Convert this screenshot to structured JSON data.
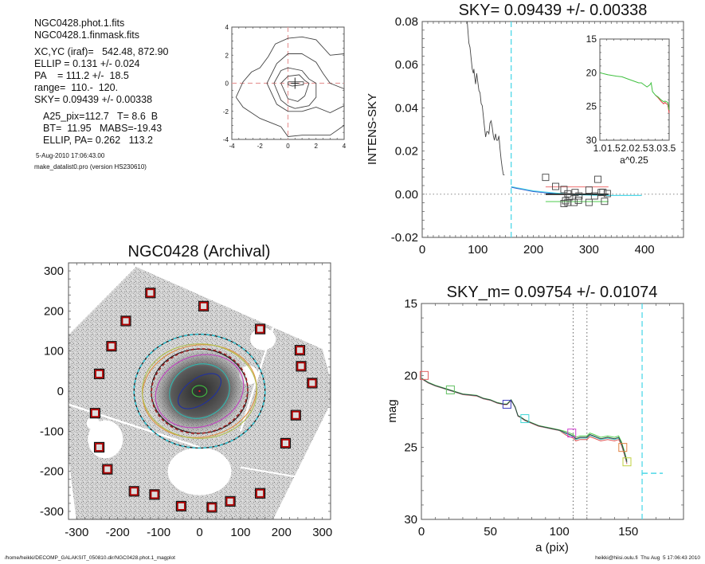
{
  "info": {
    "files": [
      "NGC0428.phot.1.fits",
      "NGC0428.1.finmask.fits"
    ],
    "params": [
      "XC,YC (iraf)=   542.48, 872.90",
      "ELLIP = 0.131 +/- 0.024",
      "PA    = 111.2 +/-  18.5",
      "range=  110.-  120.",
      "SKY= 0.09439 +/- 0.00338"
    ],
    "catalog": [
      "A25_pix=112.7   T= 8.6  B",
      "BT=  11.95   MABS=-19.43",
      "ELLIP, PA= 0.262   113.2"
    ],
    "timestamp": "5-Aug-2010 17:06:43.00",
    "program": "make_datalist0.pro (version HS230610)"
  },
  "footer": {
    "left": "/home/heikki/DECOMP_GALAKSIT_050810.dir/NGC0428.phot.1_magplot",
    "right": "heikki@hiisi.oulu.fi  Thu Aug  5 17:06:43 2010"
  },
  "colors": {
    "axis": "#555555",
    "curve": "#444444",
    "cyan": "#4fd8e8",
    "pink_dash": "#e89a9a",
    "red": "#e06060",
    "green": "#50d050",
    "blue": "#3060d0",
    "marker_red": "#b00000"
  },
  "chart_data": [
    {
      "id": "contour",
      "type": "contour",
      "title": "",
      "xlabel": "",
      "ylabel": "",
      "xlim": [
        -4,
        4
      ],
      "ylim": [
        -4,
        4
      ],
      "xticks": [
        "-4",
        "-2",
        "0",
        "2",
        "4"
      ],
      "yticks": [
        "-4",
        "-2",
        "0",
        "2",
        "4"
      ],
      "crosshair": [
        0,
        0
      ],
      "center_marker": [
        0.5,
        0
      ],
      "contours": [
        [
          [
            -3.7,
            -1
          ],
          [
            -3.2,
            0.1
          ],
          [
            -2.6,
            0.8
          ],
          [
            -2,
            1.1
          ],
          [
            -1.4,
            1.9
          ],
          [
            -0.9,
            2.8
          ],
          [
            0,
            3.2
          ],
          [
            1,
            3.3
          ],
          [
            2,
            3.1
          ],
          [
            3,
            2
          ],
          [
            4,
            2.1
          ]
        ],
        [
          [
            -3.7,
            -1
          ],
          [
            -3.2,
            -1.7
          ],
          [
            -2,
            -2.5
          ],
          [
            -1,
            -2.9
          ],
          [
            -0.5,
            -3.1
          ],
          [
            0,
            -3.8
          ],
          [
            1,
            -3.7
          ],
          [
            2,
            -3.7
          ],
          [
            3,
            -3.7
          ],
          [
            4,
            -3
          ]
        ],
        [
          [
            4,
            -0.4
          ],
          [
            3,
            0
          ],
          [
            2.5,
            0.7
          ],
          [
            2,
            1.5
          ],
          [
            1,
            2.1
          ],
          [
            0,
            2.1
          ],
          [
            -0.8,
            1.4
          ],
          [
            -1.5,
            0
          ],
          [
            -0.8,
            -1.5
          ],
          [
            0,
            -2
          ],
          [
            1,
            -2
          ],
          [
            2,
            -1.7
          ],
          [
            3,
            -2.1
          ],
          [
            4,
            -1.6
          ]
        ],
        [
          [
            -1,
            0
          ],
          [
            -0.5,
            0.9
          ],
          [
            0,
            1.1
          ],
          [
            1,
            0.9
          ],
          [
            1.5,
            0.3
          ],
          [
            2,
            0
          ],
          [
            2,
            -1
          ],
          [
            1.5,
            -1.6
          ],
          [
            0.5,
            -1.8
          ],
          [
            0,
            -1.6
          ],
          [
            -0.5,
            -1.2
          ],
          [
            -1,
            0
          ]
        ],
        [
          [
            -0.5,
            0
          ],
          [
            0,
            0.5
          ],
          [
            0.8,
            0.6
          ],
          [
            1.2,
            0.2
          ],
          [
            1.5,
            0
          ],
          [
            1.2,
            -0.9
          ],
          [
            0.7,
            -1.3
          ],
          [
            0,
            -1.1
          ],
          [
            -0.5,
            0
          ]
        ],
        [
          [
            0,
            0.1
          ],
          [
            0.3,
            0.1
          ],
          [
            1.1,
            0.1
          ],
          [
            1.1,
            -0.1
          ],
          [
            0.3,
            -0.2
          ],
          [
            0,
            -0.1
          ],
          [
            0,
            0.1
          ]
        ]
      ]
    },
    {
      "id": "sky",
      "type": "line",
      "title": "SKY= 0.09439 +/- 0.00338",
      "xlabel": "",
      "ylabel": "INTENS-SKY",
      "xlim": [
        0,
        470
      ],
      "ylim": [
        -0.02,
        0.08
      ],
      "xticks": [
        0,
        100,
        200,
        300,
        400
      ],
      "yticks": [
        "-0.02",
        "0.00",
        "0.02",
        "0.04",
        "0.06",
        "0.08"
      ],
      "zero_line": 0,
      "vline": 160,
      "profile": {
        "x": [
          81,
          84,
          86,
          88,
          90,
          92,
          93,
          94,
          96,
          98,
          100,
          102,
          104,
          106,
          108,
          110,
          112,
          114,
          116,
          118,
          120,
          122,
          124,
          126,
          128,
          130,
          132,
          134,
          136,
          138,
          140,
          142,
          144,
          146,
          148
        ],
        "y": [
          0.08,
          0.07,
          0.068,
          0.063,
          0.058,
          0.056,
          0.058,
          0.055,
          0.051,
          0.056,
          0.052,
          0.048,
          0.047,
          0.042,
          0.041,
          0.036,
          0.031,
          0.0265,
          0.029,
          0.029,
          0.028,
          0.033,
          0.034,
          0.031,
          0.027,
          0.025,
          0.028,
          0.025,
          0.025,
          0.027,
          0.021,
          0.016,
          0.012,
          0.009,
          0.009
        ]
      },
      "sky_profile": {
        "x": [
          160,
          170,
          180,
          190,
          200,
          220,
          240,
          260,
          280,
          300,
          320,
          340,
          360,
          380,
          395
        ],
        "y": [
          0.0035,
          0.003,
          0.0025,
          0.002,
          0.0015,
          0.001,
          0.0005,
          0.0,
          -0.0002,
          -0.0004,
          -0.0005,
          -0.0006,
          -0.0006,
          -0.0006,
          -0.0006
        ]
      },
      "hlines": [
        {
          "name": "upper",
          "y": 0.0034,
          "x0": 222,
          "x1": 335,
          "color": "red"
        },
        {
          "name": "mean",
          "y": 0.0,
          "x0": 222,
          "x1": 335,
          "color": "black"
        },
        {
          "name": "lower",
          "y": -0.0034,
          "x0": 222,
          "x1": 335,
          "color": "green"
        }
      ],
      "squares": [
        [
          222,
          0.0078
        ],
        [
          240,
          0.0036
        ],
        [
          255,
          0.0022
        ],
        [
          262,
          0.0002
        ],
        [
          265,
          -0.0012
        ],
        [
          258,
          -0.003
        ],
        [
          262,
          -0.0038
        ],
        [
          255,
          -0.0043
        ],
        [
          275,
          0.0008
        ],
        [
          282,
          -0.0008
        ],
        [
          281,
          -0.0028
        ],
        [
          273,
          -0.0038
        ],
        [
          300,
          0.0019
        ],
        [
          300,
          -0.0038
        ],
        [
          316,
          0.0069
        ],
        [
          322,
          0.0008
        ],
        [
          325,
          0.0009
        ],
        [
          333,
          0.0003
        ],
        [
          328,
          -0.0033
        ],
        [
          310,
          -0.0008
        ]
      ],
      "inset": {
        "xlabel": "a^0.25",
        "xlim": [
          1.0,
          3.5
        ],
        "ylim": [
          30,
          15
        ],
        "xticks": [
          "1.0",
          "1.5",
          "2.0",
          "2.5",
          "3.0",
          "3.5"
        ],
        "yticks": [
          "15",
          "20",
          "25",
          "30"
        ],
        "green": {
          "x": [
            1.0,
            1.3,
            1.6,
            1.8,
            2.0,
            2.2,
            2.4,
            2.5,
            2.6,
            2.7,
            2.8,
            2.85,
            2.9,
            3.0,
            3.1,
            3.2,
            3.3,
            3.35,
            3.4,
            3.45,
            3.5
          ],
          "y": [
            20.0,
            20.3,
            20.5,
            20.6,
            20.9,
            21.2,
            21.5,
            21.5,
            21.8,
            22.1,
            21.8,
            21.5,
            22.8,
            23.3,
            23.6,
            24.0,
            24.3,
            24.2,
            24.3,
            24.4,
            25.5
          ]
        },
        "red": {
          "x": [
            3.0,
            3.1,
            3.2,
            3.3,
            3.35,
            3.4,
            3.45,
            3.5
          ],
          "y": [
            23.3,
            23.7,
            24.2,
            24.6,
            24.4,
            24.6,
            24.7,
            26.0
          ]
        }
      }
    },
    {
      "id": "galaxy",
      "type": "image",
      "title": "NGC0428 (Archival)",
      "xlim": [
        -320,
        320
      ],
      "ylim": [
        -320,
        320
      ],
      "xticks": [
        -300,
        -200,
        -100,
        0,
        100,
        200,
        300
      ],
      "yticks": [
        -300,
        -200,
        -100,
        0,
        100,
        200,
        300
      ],
      "sky_boxes": [
        [
          -120,
          245
        ],
        [
          10,
          212
        ],
        [
          -180,
          175
        ],
        [
          148,
          155
        ],
        [
          -215,
          112
        ],
        [
          245,
          102
        ],
        [
          248,
          62
        ],
        [
          -245,
          43
        ],
        [
          275,
          20
        ],
        [
          -255,
          -55
        ],
        [
          235,
          -60
        ],
        [
          -245,
          -140
        ],
        [
          210,
          -130
        ],
        [
          -225,
          -195
        ],
        [
          -160,
          -250
        ],
        [
          -110,
          -258
        ],
        [
          -45,
          -287
        ],
        [
          30,
          -290
        ],
        [
          75,
          -275
        ],
        [
          148,
          -255
        ]
      ],
      "ellipses": [
        {
          "name": "inner-green",
          "a": 18,
          "b": 14,
          "pa": 0,
          "color": "#40c040"
        },
        {
          "name": "blue",
          "a": 60,
          "b": 32,
          "pa": 35,
          "color": "#2030a0"
        },
        {
          "name": "cyan-mid",
          "a": 75,
          "b": 66,
          "pa": 25,
          "color": "#30b8b0"
        },
        {
          "name": "magenta",
          "a": 110,
          "b": 88,
          "pa": 20,
          "color": "#c040c0"
        },
        {
          "name": "red-dashed",
          "a": 118,
          "b": 105,
          "pa": 10,
          "color": "#a02020"
        },
        {
          "name": "orange",
          "a": 140,
          "b": 115,
          "pa": 10,
          "color": "#e09040"
        },
        {
          "name": "olive",
          "a": 140,
          "b": 118,
          "pa": 0,
          "color": "#b0c050"
        },
        {
          "name": "outer-dashed",
          "a": 160,
          "b": 142,
          "pa": 0,
          "color": "#30c0d0"
        }
      ]
    },
    {
      "id": "mag",
      "type": "line",
      "title": "SKY_m=  0.09754 +/- 0.01074",
      "xlabel": "a (pix)",
      "ylabel": "mag",
      "xlim": [
        0,
        190
      ],
      "ylim": [
        30,
        15
      ],
      "xticks": [
        0,
        50,
        100,
        150
      ],
      "yticks": [
        15,
        20,
        25,
        30
      ],
      "vlines_dotted": [
        110,
        120
      ],
      "vline_dashed": 160,
      "sky_level": {
        "y": 26.8,
        "x0": 160,
        "x1": 175
      },
      "profile_black": {
        "x": [
          0,
          5,
          10,
          20,
          30,
          40,
          45,
          50,
          55,
          60,
          62,
          65,
          68,
          70,
          72,
          75,
          80,
          85,
          90,
          95,
          100,
          105,
          110,
          112,
          115,
          118,
          120,
          122,
          125,
          130,
          135,
          140,
          143,
          145,
          147,
          149
        ],
        "y": [
          20.2,
          20.5,
          20.7,
          21.0,
          21.3,
          21.4,
          21.6,
          21.7,
          21.9,
          22.0,
          22.0,
          21.7,
          22.2,
          22.8,
          22.9,
          23.1,
          23.3,
          23.5,
          23.6,
          23.7,
          23.8,
          24.0,
          24.2,
          24.4,
          24.3,
          24.3,
          24.3,
          24.1,
          24.2,
          24.4,
          24.3,
          24.4,
          24.3,
          24.7,
          25.3,
          26.0
        ]
      },
      "profile_offsets": {
        "red": 0.15,
        "green": -0.1,
        "cyan": 0.05
      },
      "markers": [
        {
          "x": 2,
          "y": 20.0,
          "color": "#e06060"
        },
        {
          "x": 21,
          "y": 21.0,
          "color": "#60c060"
        },
        {
          "x": 62,
          "y": 22.0,
          "color": "#4040c0"
        },
        {
          "x": 75,
          "y": 23.0,
          "color": "#40d8d8"
        },
        {
          "x": 109,
          "y": 24.0,
          "color": "#d040d0"
        },
        {
          "x": 146,
          "y": 25.0,
          "color": "#e08040"
        },
        {
          "x": 149,
          "y": 26.0,
          "color": "#c0d040"
        }
      ]
    }
  ]
}
